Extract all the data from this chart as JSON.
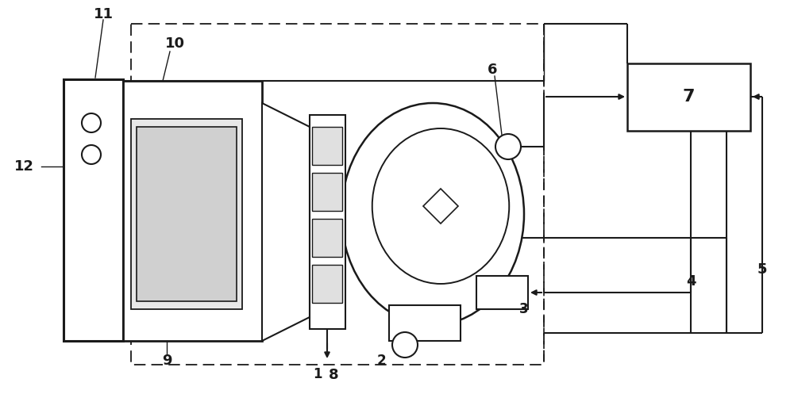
{
  "bg_color": "#ffffff",
  "lc": "#1a1a1a",
  "fig_w": 10.0,
  "fig_h": 4.97,
  "dpi": 100
}
